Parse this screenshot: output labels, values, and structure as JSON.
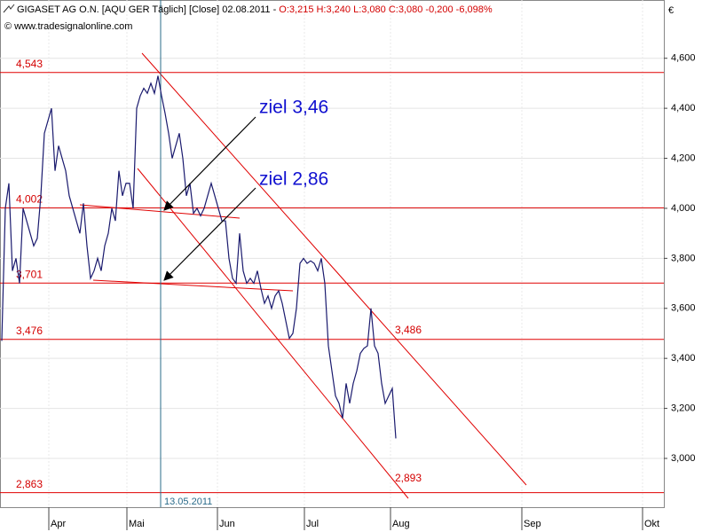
{
  "chart_data": {
    "type": "line",
    "title": "GIGASET AG O.N. [AQU GER  Täglich] [Close] 02.08.2011 -",
    "quote": "O:3,215 H:3,240 L:3,080 C:3,080 -0,200 -6,098%",
    "source": "© www.tradesignalonline.com",
    "currency": "€",
    "x": [
      0.5,
      1.5,
      2.5,
      3.5,
      4.5,
      5.5,
      6.5,
      7.5,
      8.5,
      9.5,
      10.5,
      11.5,
      12.5,
      13.5,
      14.5,
      15.5,
      16.5,
      17.5,
      18.5,
      19.5,
      20.5,
      21.5,
      22.5,
      23.5,
      24.5,
      25.5,
      26.5,
      27.5,
      28.5,
      29.5,
      30.5,
      31.5,
      32.5,
      33.5,
      34.5,
      35.5,
      36.5,
      37.5,
      38.5,
      39.5,
      40.5,
      41.5,
      42.5,
      43.5,
      44.5,
      45.5,
      46.5,
      47.5,
      48.5,
      49.5,
      50.5,
      51.5,
      52.5,
      53.5,
      54.5,
      55.5,
      56.5,
      57.5,
      58.5,
      59.5,
      60.5,
      61.5,
      62.5,
      63.5,
      64.5,
      65.5,
      66.5,
      67.5,
      68.5,
      69.5,
      70.5,
      71.5,
      72.5,
      73.5,
      74.5,
      75.5,
      76.5,
      77.5,
      78.5,
      79.5,
      80.5,
      81.5,
      82.5,
      83.5,
      84.5,
      85.5,
      86.5,
      87.5,
      88.5,
      89.5,
      90.5,
      91.5,
      92.5,
      93.5,
      94.5,
      95.5,
      96.5,
      97.5,
      98.5,
      99.5,
      100.5,
      101.5,
      102.5,
      103.5,
      104.5,
      105.5,
      106.5,
      107.5,
      108.5,
      109.5,
      110.5,
      111.5
    ],
    "series": [
      {
        "name": "Close",
        "color": "#1a1a6e",
        "values": [
          3.47,
          4.0,
          4.1,
          3.75,
          3.8,
          3.7,
          4.0,
          3.95,
          3.9,
          3.85,
          3.88,
          4.05,
          4.3,
          4.35,
          4.4,
          4.15,
          4.25,
          4.2,
          4.15,
          4.05,
          4.0,
          3.95,
          3.9,
          4.02,
          3.85,
          3.72,
          3.75,
          3.8,
          3.75,
          3.85,
          3.9,
          4.0,
          3.95,
          4.15,
          4.05,
          4.1,
          4.1,
          4.0,
          4.4,
          4.45,
          4.48,
          4.46,
          4.5,
          4.46,
          4.53,
          4.45,
          4.38,
          4.3,
          4.2,
          4.25,
          4.3,
          4.2,
          4.05,
          4.1,
          3.98,
          4.0,
          3.97,
          4.0,
          4.05,
          4.1,
          4.05,
          4.0,
          3.95,
          3.95,
          3.8,
          3.72,
          3.7,
          3.9,
          3.75,
          3.7,
          3.72,
          3.7,
          3.75,
          3.68,
          3.62,
          3.65,
          3.6,
          3.65,
          3.67,
          3.62,
          3.55,
          3.48,
          3.5,
          3.6,
          3.78,
          3.8,
          3.78,
          3.79,
          3.78,
          3.75,
          3.8,
          3.7,
          3.45,
          3.35,
          3.25,
          3.22,
          3.16,
          3.3,
          3.22,
          3.3,
          3.35,
          3.42,
          3.44,
          3.45,
          3.6,
          3.45,
          3.42,
          3.3,
          3.22,
          3.25,
          3.28,
          3.08
        ]
      }
    ],
    "xlim": [
      0,
      187
    ],
    "xticks": [
      {
        "value": 13.75,
        "label": "Apr"
      },
      {
        "value": 35.75,
        "label": "Mai"
      },
      {
        "value": 61.25,
        "label": "Jun"
      },
      {
        "value": 85.75,
        "label": "Jul"
      },
      {
        "value": 110,
        "label": "Aug"
      },
      {
        "value": 147,
        "label": "Sep"
      },
      {
        "value": 181,
        "label": "Okt"
      }
    ],
    "ylim": [
      2.805,
      4.833
    ],
    "yticks": [
      {
        "value": 3.0,
        "label": "3,000"
      },
      {
        "value": 3.2,
        "label": "3,200"
      },
      {
        "value": 3.4,
        "label": "3,400"
      },
      {
        "value": 3.6,
        "label": "3,600"
      },
      {
        "value": 3.8,
        "label": "3,800"
      },
      {
        "value": 4.0,
        "label": "4,000"
      },
      {
        "value": 4.2,
        "label": "4,200"
      },
      {
        "value": 4.4,
        "label": "4,400"
      },
      {
        "value": 4.6,
        "label": "4,600"
      }
    ],
    "grid": true,
    "levels": [
      {
        "value": 4.543,
        "label": "4,543"
      },
      {
        "value": 4.002,
        "label": "4,002"
      },
      {
        "value": 3.701,
        "label": "3,701"
      },
      {
        "value": 3.476,
        "label": "3,476"
      },
      {
        "value": 2.863,
        "label": "2,863"
      }
    ],
    "level_color": "#e00000",
    "marker": {
      "x": 45.25,
      "label": "13.05.2011",
      "color": "#2a6b8a"
    },
    "annotations": [
      "ziel 3,46",
      "ziel 2,86",
      "3,486",
      "2,893"
    ]
  }
}
